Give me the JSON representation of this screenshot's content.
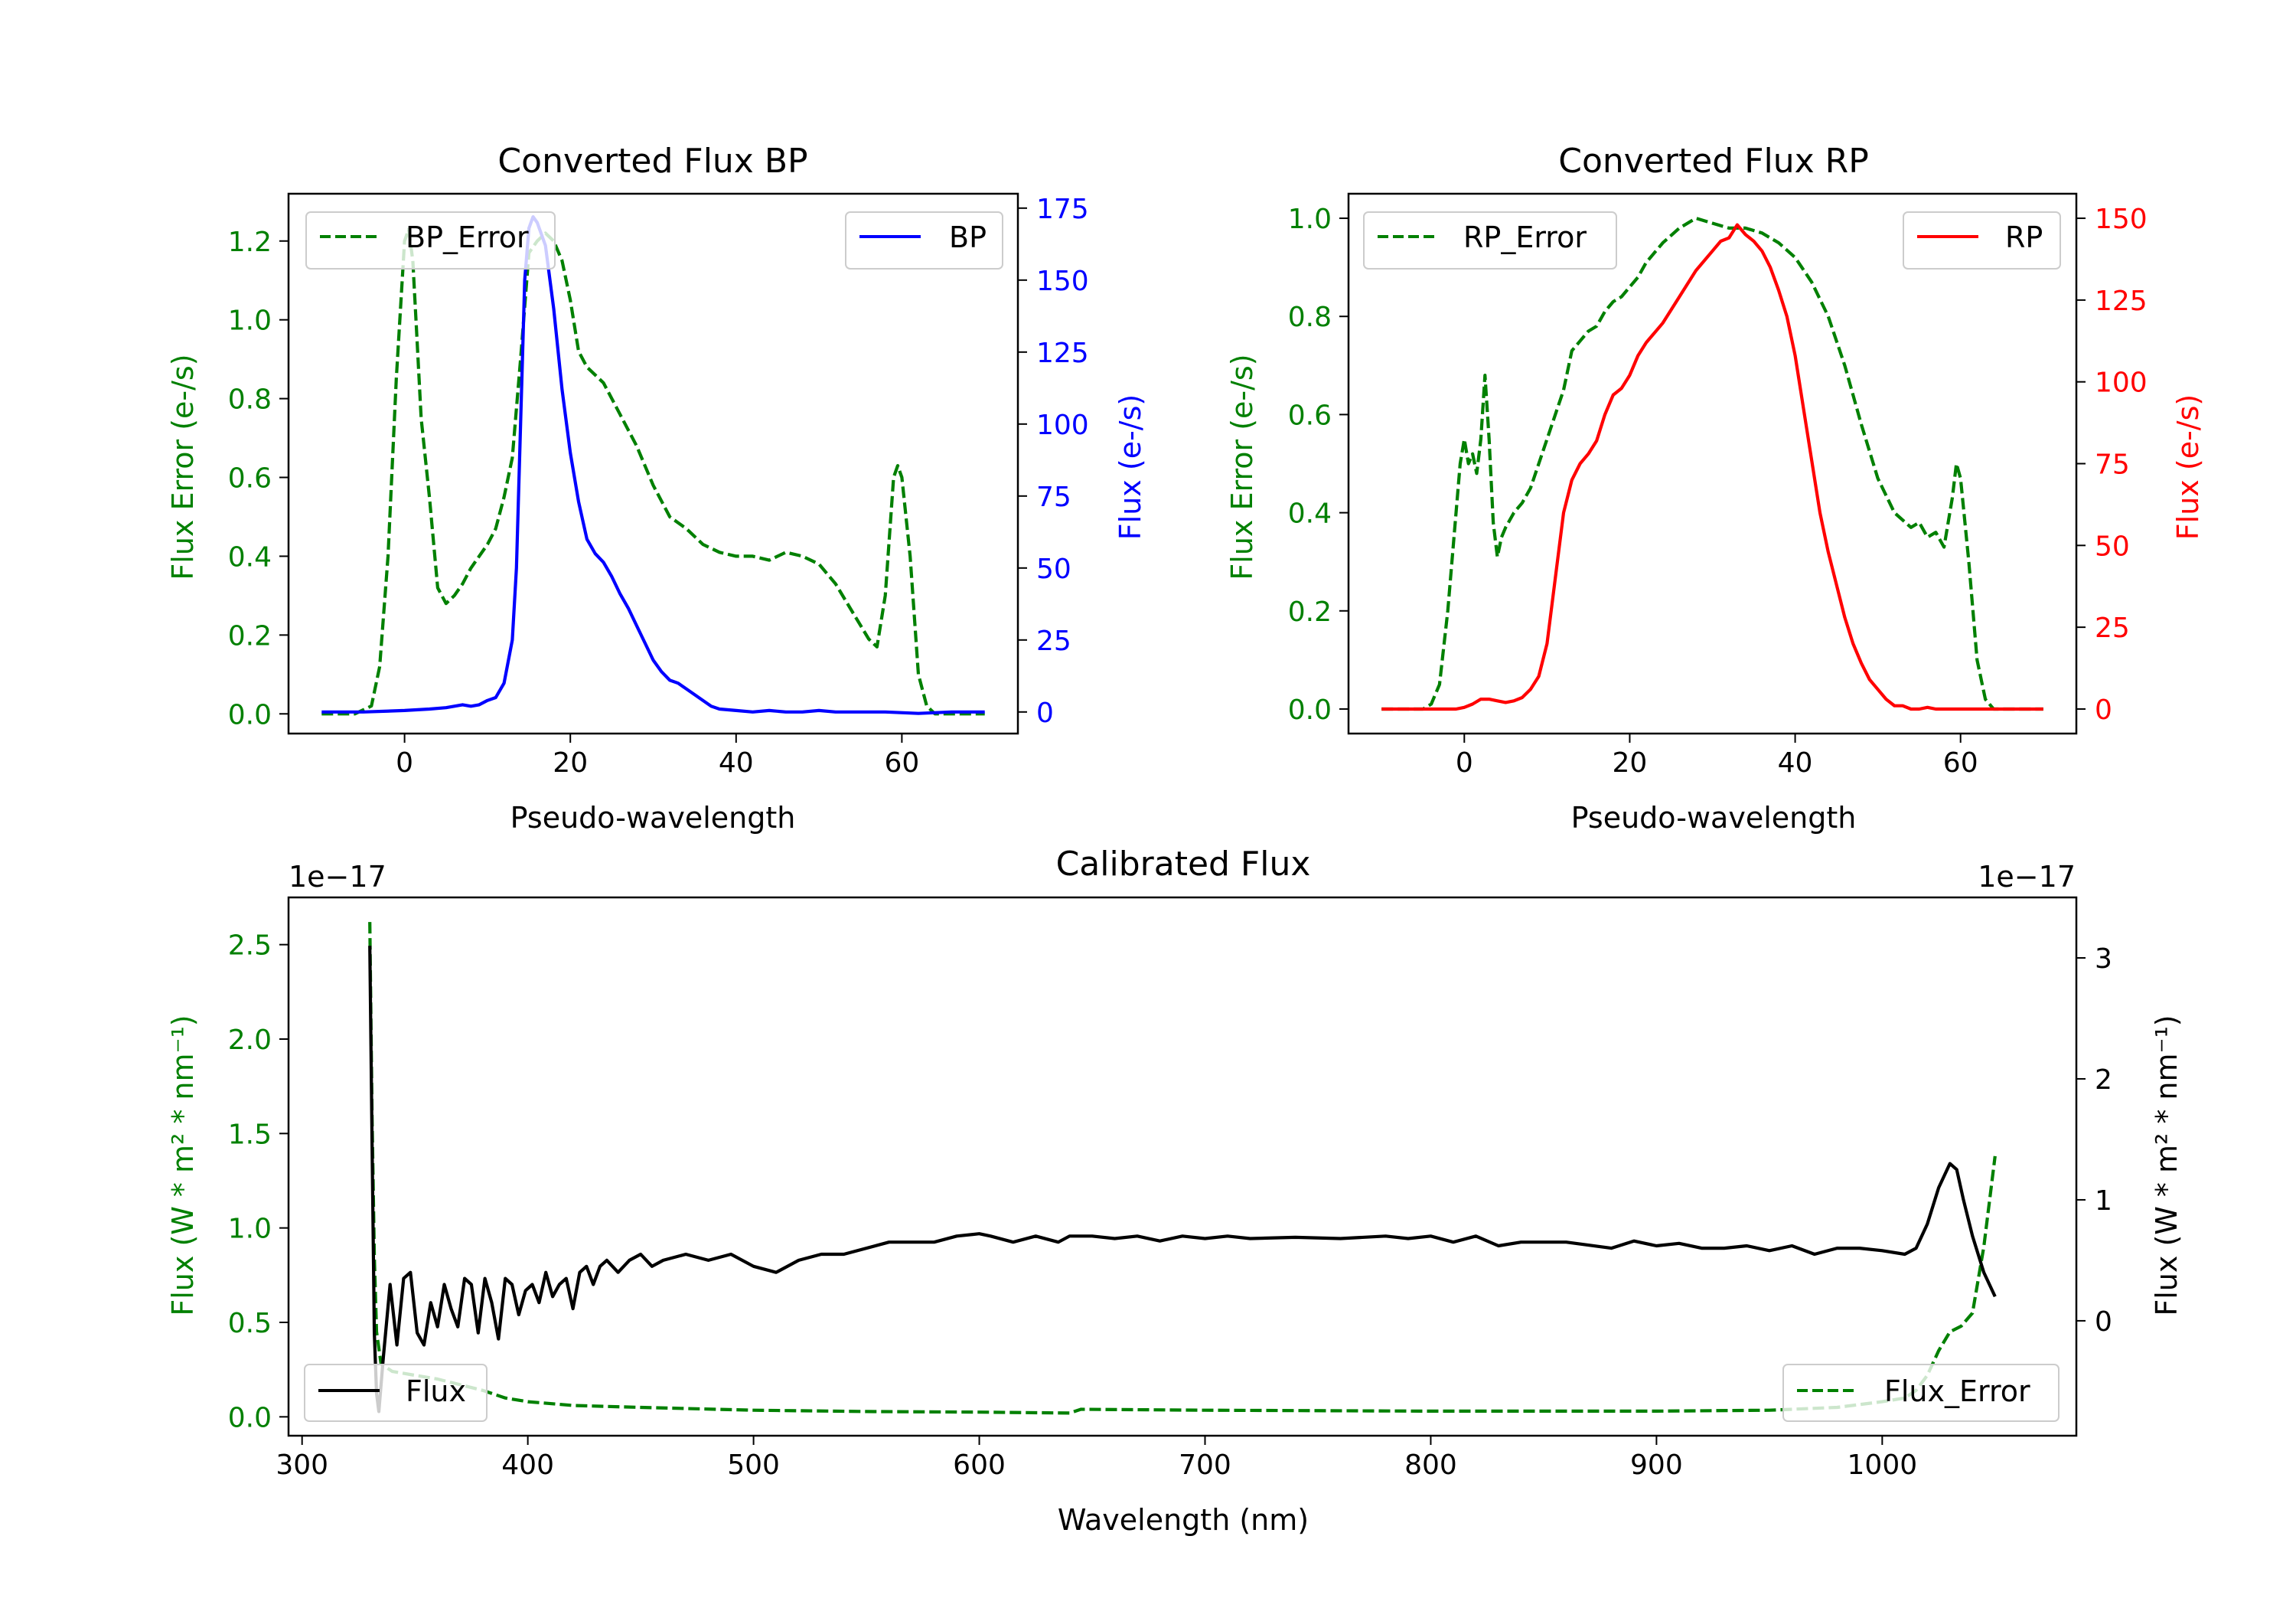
{
  "chart_data": [
    {
      "type": "line",
      "title": "Converted Flux BP",
      "xlabel": "Pseudo-wavelength",
      "ylabel_left": "Flux Error (e-/s)",
      "ylabel_right": "Flux (e-/s)",
      "xlim": [
        -14,
        74
      ],
      "ylim_left": [
        -0.05,
        1.32
      ],
      "ylim_right": [
        -7.5,
        180
      ],
      "xticks": [
        0,
        20,
        40,
        60
      ],
      "yticks_left": [
        0.0,
        0.2,
        0.4,
        0.6,
        0.8,
        1.0,
        1.2
      ],
      "yticks_left_labels": [
        "0.0",
        "0.2",
        "0.4",
        "0.6",
        "0.8",
        "1.0",
        "1.2"
      ],
      "yticks_right": [
        0,
        25,
        50,
        75,
        100,
        125,
        150,
        175
      ],
      "yticks_right_labels": [
        "0",
        "25",
        "50",
        "75",
        "100",
        "125",
        "150",
        "175"
      ],
      "colors": {
        "left": "#008000",
        "right": "#0000ff"
      },
      "series": [
        {
          "name": "BP_Error",
          "axis": "left",
          "color": "#008000",
          "dash": true,
          "x": [
            -10,
            -6,
            -4,
            -3,
            -2,
            -1,
            0,
            0.5,
            1,
            1.5,
            2,
            3,
            4,
            5,
            6,
            7,
            8,
            9,
            10,
            11,
            12,
            13,
            14,
            15,
            16,
            17,
            18,
            19,
            20,
            21,
            22,
            23,
            24,
            25,
            26,
            28,
            30,
            32,
            34,
            36,
            38,
            40,
            42,
            44,
            46,
            48,
            50,
            52,
            54,
            56,
            57,
            58,
            59,
            59.5,
            60,
            61,
            62,
            63,
            64,
            66,
            70
          ],
          "y": [
            0.0,
            0.0,
            0.02,
            0.12,
            0.4,
            0.85,
            1.2,
            1.23,
            1.15,
            0.95,
            0.75,
            0.55,
            0.32,
            0.28,
            0.3,
            0.33,
            0.37,
            0.4,
            0.43,
            0.47,
            0.55,
            0.65,
            0.9,
            1.17,
            1.2,
            1.22,
            1.2,
            1.15,
            1.05,
            0.92,
            0.88,
            0.86,
            0.84,
            0.8,
            0.76,
            0.68,
            0.58,
            0.5,
            0.47,
            0.43,
            0.41,
            0.4,
            0.4,
            0.39,
            0.41,
            0.4,
            0.38,
            0.33,
            0.26,
            0.19,
            0.17,
            0.3,
            0.6,
            0.63,
            0.6,
            0.4,
            0.1,
            0.02,
            0.0,
            0.0,
            0.0
          ]
        },
        {
          "name": "BP",
          "axis": "right",
          "color": "#0000ff",
          "dash": false,
          "x": [
            -10,
            -5,
            0,
            3,
            5,
            6,
            7,
            8,
            9,
            10,
            11,
            12,
            13,
            13.5,
            14,
            14.5,
            15,
            15.5,
            16,
            17,
            18,
            19,
            20,
            21,
            22,
            23,
            24,
            25,
            26,
            27,
            28,
            29,
            30,
            31,
            32,
            33,
            34,
            35,
            36,
            37,
            38,
            40,
            42,
            44,
            46,
            48,
            50,
            52,
            55,
            58,
            62,
            66,
            70
          ],
          "y": [
            0,
            0,
            0.5,
            1,
            1.5,
            2,
            2.5,
            2,
            2.5,
            4,
            5,
            10,
            25,
            50,
            100,
            150,
            168,
            172,
            170,
            162,
            140,
            112,
            90,
            73,
            60,
            55,
            52,
            47,
            41,
            36,
            30,
            24,
            18,
            14,
            11,
            10,
            8,
            6,
            4,
            2,
            1,
            0.5,
            0,
            0.5,
            0,
            0,
            0.5,
            0,
            0,
            0,
            -0.5,
            0,
            0
          ]
        }
      ],
      "legend": [
        {
          "label": "BP_Error",
          "position": "upper-left"
        },
        {
          "label": "BP",
          "position": "upper-right"
        }
      ]
    },
    {
      "type": "line",
      "title": "Converted Flux RP",
      "xlabel": "Pseudo-wavelength",
      "ylabel_left": "Flux Error (e-/s)",
      "ylabel_right": "Flux (e-/s)",
      "xlim": [
        -14,
        74
      ],
      "ylim_left": [
        -0.05,
        1.05
      ],
      "ylim_right": [
        -7.5,
        157.5
      ],
      "xticks": [
        0,
        20,
        40,
        60
      ],
      "yticks_left": [
        0.0,
        0.2,
        0.4,
        0.6,
        0.8,
        1.0
      ],
      "yticks_left_labels": [
        "0.0",
        "0.2",
        "0.4",
        "0.6",
        "0.8",
        "1.0"
      ],
      "yticks_right": [
        0,
        25,
        50,
        75,
        100,
        125,
        150
      ],
      "yticks_right_labels": [
        "0",
        "25",
        "50",
        "75",
        "100",
        "125",
        "150"
      ],
      "colors": {
        "left": "#008000",
        "right": "#ff0000"
      },
      "series": [
        {
          "name": "RP_Error",
          "axis": "left",
          "color": "#008000",
          "dash": true,
          "x": [
            -10,
            -5,
            -4,
            -3,
            -2,
            -1,
            -0.5,
            0,
            0.5,
            1,
            1.5,
            2,
            2.5,
            3,
            3.5,
            4,
            4.5,
            5,
            6,
            7,
            8,
            9,
            10,
            11,
            12,
            13,
            14,
            15,
            16,
            17,
            18,
            19,
            20,
            21,
            22,
            24,
            26,
            28,
            30,
            32,
            34,
            36,
            38,
            40,
            42,
            44,
            46,
            48,
            50,
            52,
            54,
            55,
            56,
            57,
            58,
            59,
            59.5,
            60,
            61,
            62,
            63,
            64,
            66,
            70
          ],
          "y": [
            0.0,
            0.0,
            0.01,
            0.05,
            0.2,
            0.4,
            0.5,
            0.55,
            0.5,
            0.52,
            0.48,
            0.55,
            0.68,
            0.55,
            0.38,
            0.31,
            0.35,
            0.37,
            0.4,
            0.42,
            0.45,
            0.5,
            0.55,
            0.6,
            0.65,
            0.73,
            0.75,
            0.77,
            0.78,
            0.81,
            0.83,
            0.84,
            0.86,
            0.88,
            0.91,
            0.95,
            0.98,
            1.0,
            0.99,
            0.98,
            0.98,
            0.97,
            0.95,
            0.92,
            0.87,
            0.8,
            0.7,
            0.58,
            0.47,
            0.4,
            0.37,
            0.38,
            0.35,
            0.36,
            0.33,
            0.43,
            0.5,
            0.47,
            0.3,
            0.1,
            0.02,
            0.0,
            0.0,
            0.0
          ]
        },
        {
          "name": "RP",
          "axis": "right",
          "color": "#ff0000",
          "dash": false,
          "x": [
            -10,
            -5,
            -1,
            0,
            1,
            2,
            3,
            4,
            5,
            6,
            7,
            8,
            9,
            10,
            11,
            12,
            13,
            14,
            15,
            16,
            17,
            18,
            19,
            20,
            21,
            22,
            24,
            26,
            28,
            30,
            31,
            32,
            33,
            34,
            35,
            36,
            37,
            38,
            39,
            40,
            41,
            42,
            43,
            44,
            45,
            46,
            47,
            48,
            49,
            50,
            51,
            52,
            53,
            54,
            55,
            56,
            57,
            58,
            59,
            60,
            62,
            66,
            70
          ],
          "y": [
            0,
            0,
            0,
            0.5,
            1.5,
            3,
            3,
            2.5,
            2,
            2.5,
            3.5,
            6,
            10,
            20,
            40,
            60,
            70,
            75,
            78,
            82,
            90,
            96,
            98,
            102,
            108,
            112,
            118,
            126,
            134,
            140,
            143,
            144,
            148,
            145,
            143,
            140,
            135,
            128,
            120,
            108,
            92,
            76,
            60,
            48,
            38,
            28,
            20,
            14,
            9,
            6,
            3,
            1,
            1,
            0,
            0,
            0.5,
            0,
            0,
            0,
            0,
            0,
            0,
            0
          ]
        }
      ],
      "legend": [
        {
          "label": "RP_Error",
          "position": "upper-left"
        },
        {
          "label": "RP",
          "position": "upper-right"
        }
      ]
    },
    {
      "type": "line",
      "title": "Calibrated Flux",
      "xlabel": "Wavelength (nm)",
      "ylabel_left": "Flux (W * m² * nm⁻¹)",
      "ylabel_right": "Flux (W * m² * nm⁻¹)",
      "offset_left": "1e−17",
      "offset_right": "1e−17",
      "xlim": [
        294,
        1086
      ],
      "ylim_left": [
        -0.1,
        2.75
      ],
      "ylim_right": [
        -0.95,
        3.5
      ],
      "xticks": [
        300,
        400,
        500,
        600,
        700,
        800,
        900,
        1000
      ],
      "yticks_left": [
        0.0,
        0.5,
        1.0,
        1.5,
        2.0,
        2.5
      ],
      "yticks_left_labels": [
        "0.0",
        "0.5",
        "1.0",
        "1.5",
        "2.0",
        "2.5"
      ],
      "yticks_right": [
        0,
        1,
        2,
        3
      ],
      "yticks_right_labels": [
        "0",
        "1",
        "2",
        "3"
      ],
      "colors": {
        "left": "#008000",
        "right": "#000000"
      },
      "series": [
        {
          "name": "Flux_Error",
          "axis": "left",
          "color": "#008000",
          "dash": true,
          "x": [
            330,
            331,
            332,
            333,
            335,
            340,
            350,
            360,
            370,
            380,
            390,
            400,
            420,
            450,
            500,
            550,
            600,
            640,
            645,
            700,
            800,
            900,
            950,
            980,
            1000,
            1010,
            1015,
            1020,
            1025,
            1030,
            1035,
            1040,
            1045,
            1050
          ],
          "y": [
            2.62,
            1.6,
            0.85,
            0.45,
            0.28,
            0.24,
            0.22,
            0.2,
            0.17,
            0.14,
            0.1,
            0.08,
            0.06,
            0.05,
            0.035,
            0.028,
            0.025,
            0.02,
            0.04,
            0.035,
            0.03,
            0.03,
            0.035,
            0.05,
            0.08,
            0.1,
            0.14,
            0.22,
            0.35,
            0.45,
            0.48,
            0.55,
            0.9,
            1.38
          ]
        },
        {
          "name": "Flux",
          "axis": "right",
          "color": "#000000",
          "dash": false,
          "x": [
            330,
            331,
            332,
            333,
            334,
            336,
            339,
            342,
            345,
            348,
            351,
            354,
            357,
            360,
            363,
            366,
            369,
            372,
            375,
            378,
            381,
            384,
            387,
            390,
            393,
            396,
            399,
            402,
            405,
            408,
            411,
            414,
            417,
            420,
            423,
            426,
            429,
            432,
            435,
            440,
            445,
            450,
            455,
            460,
            470,
            480,
            490,
            500,
            510,
            520,
            530,
            540,
            560,
            580,
            590,
            600,
            605,
            615,
            625,
            635,
            640,
            650,
            660,
            670,
            680,
            690,
            700,
            710,
            720,
            740,
            760,
            780,
            790,
            800,
            810,
            820,
            830,
            840,
            860,
            880,
            890,
            900,
            910,
            920,
            930,
            940,
            950,
            960,
            970,
            980,
            990,
            1000,
            1010,
            1015,
            1020,
            1025,
            1030,
            1033,
            1036,
            1040,
            1045,
            1050
          ],
          "y": [
            3.1,
            1.5,
            -0.1,
            -0.6,
            -0.75,
            -0.3,
            0.3,
            -0.2,
            0.35,
            0.4,
            -0.1,
            -0.2,
            0.15,
            -0.05,
            0.3,
            0.1,
            -0.05,
            0.35,
            0.3,
            -0.1,
            0.35,
            0.15,
            -0.15,
            0.35,
            0.3,
            0.05,
            0.25,
            0.3,
            0.15,
            0.4,
            0.2,
            0.3,
            0.35,
            0.1,
            0.4,
            0.45,
            0.3,
            0.45,
            0.5,
            0.4,
            0.5,
            0.55,
            0.45,
            0.5,
            0.55,
            0.5,
            0.55,
            0.45,
            0.4,
            0.5,
            0.55,
            0.55,
            0.65,
            0.65,
            0.7,
            0.72,
            0.7,
            0.65,
            0.7,
            0.65,
            0.7,
            0.7,
            0.68,
            0.7,
            0.66,
            0.7,
            0.68,
            0.7,
            0.68,
            0.69,
            0.68,
            0.7,
            0.68,
            0.7,
            0.65,
            0.7,
            0.62,
            0.65,
            0.65,
            0.6,
            0.66,
            0.62,
            0.64,
            0.6,
            0.6,
            0.62,
            0.58,
            0.62,
            0.55,
            0.6,
            0.6,
            0.58,
            0.55,
            0.6,
            0.8,
            1.1,
            1.3,
            1.25,
            1.0,
            0.7,
            0.4,
            0.2
          ]
        }
      ],
      "legend": [
        {
          "label": "Flux",
          "position": "lower-left"
        },
        {
          "label": "Flux_Error",
          "position": "lower-right"
        }
      ]
    }
  ]
}
